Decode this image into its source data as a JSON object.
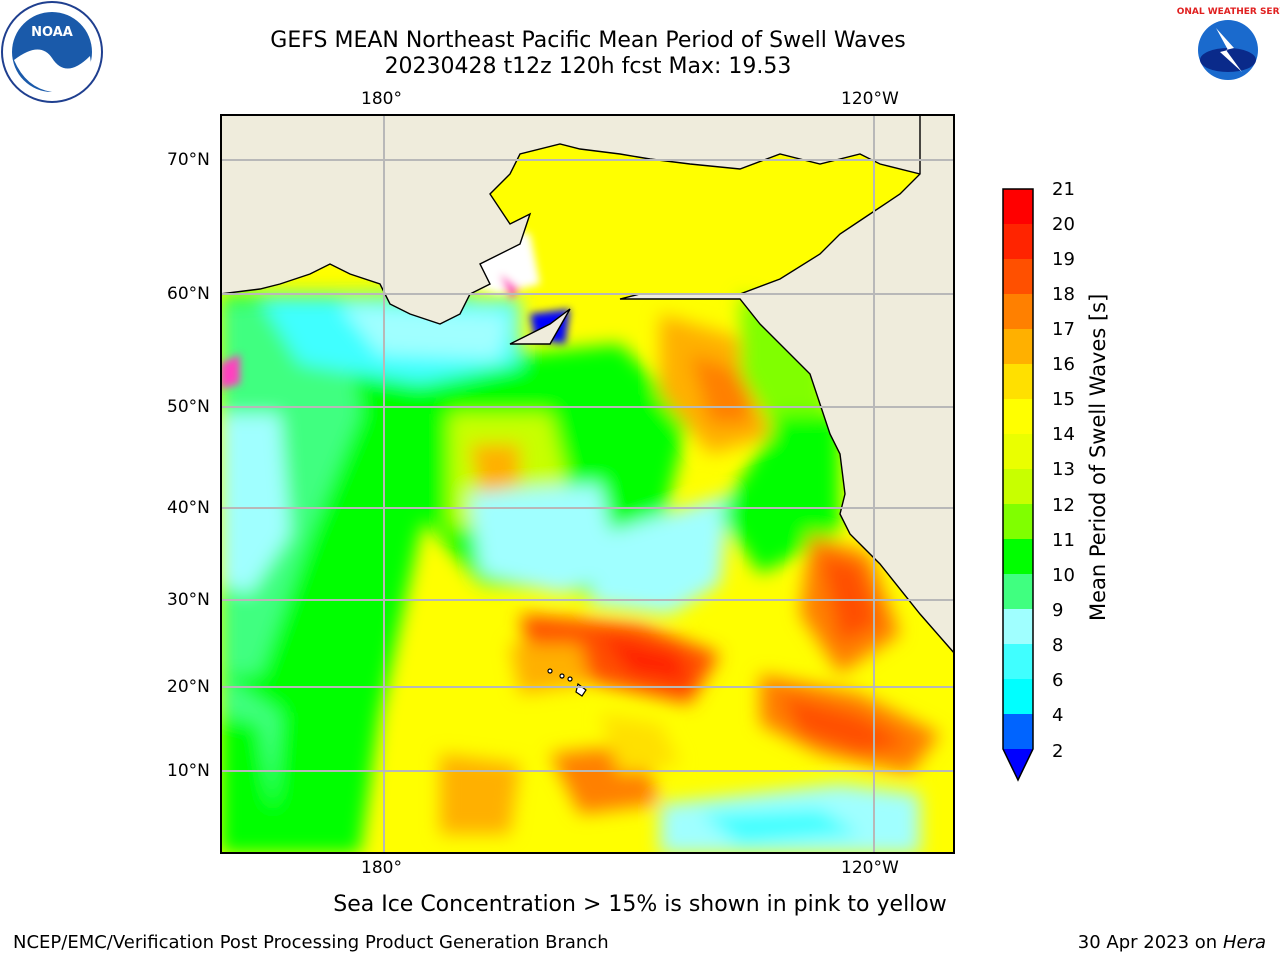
{
  "header": {
    "title_line1": "GEFS MEAN Northeast Pacific Mean Period of Swell Waves",
    "title_line2": "20230428 t12z 120h fcst   Max: 19.53",
    "logo_left_text": "NOAA",
    "logo_right_text": "NATIONAL WEATHER SERVICE"
  },
  "map": {
    "lon_labels": [
      "180°",
      "120°W"
    ],
    "lat_labels": [
      "70°N",
      "60°N",
      "50°N",
      "40°N",
      "30°N",
      "20°N",
      "10°N"
    ],
    "land_color": "#efecdc",
    "ocean_base_color": "#ffff00"
  },
  "colorbar": {
    "label": "Mean Period of Swell Waves [s]",
    "ticks": [
      "21",
      "20",
      "19",
      "18",
      "17",
      "16",
      "15",
      "14",
      "13",
      "12",
      "11",
      "10",
      "9",
      "8",
      "6",
      "4",
      "2"
    ],
    "colors": [
      "#ff0000",
      "#ff2400",
      "#ff5000",
      "#ff8000",
      "#ffb000",
      "#ffe000",
      "#ffff00",
      "#eaff00",
      "#c8ff00",
      "#80ff00",
      "#00ff00",
      "#40ff80",
      "#a0ffff",
      "#40ffff",
      "#00ffff",
      "#00c8ff",
      "#0064ff",
      "#0000ff"
    ]
  },
  "footer": {
    "note": "Sea Ice Concentration > 15% is shown in pink to yellow",
    "credit": "NCEP/EMC/Verification Post Processing Product Generation Branch",
    "date_prefix": "30 Apr 2023 on ",
    "date_machine": "Hera"
  }
}
